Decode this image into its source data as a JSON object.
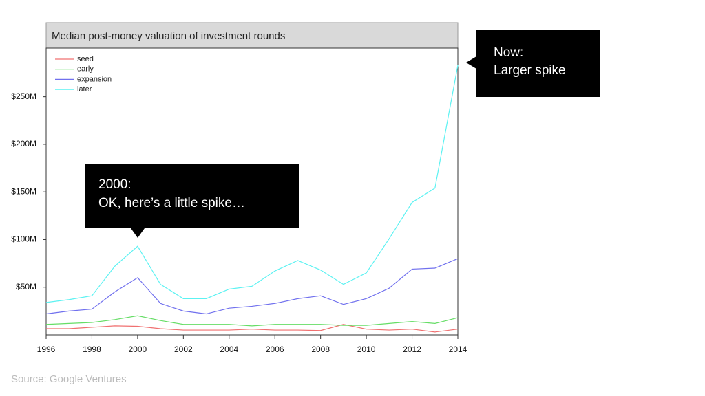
{
  "chart_data": {
    "type": "line",
    "title": "Median post-money valuation of investment rounds",
    "x": [
      1996,
      1997,
      1998,
      1999,
      2000,
      2001,
      2002,
      2003,
      2004,
      2005,
      2006,
      2007,
      2008,
      2009,
      2010,
      2011,
      2012,
      2013,
      2014
    ],
    "series": [
      {
        "name": "seed",
        "color": "#f07070",
        "values": [
          6.5,
          6.5,
          8,
          9.5,
          9,
          6.5,
          5,
          5,
          5,
          6,
          5,
          5,
          4.5,
          11,
          6,
          5,
          6,
          3,
          6
        ]
      },
      {
        "name": "early",
        "color": "#66dd66",
        "values": [
          11,
          12,
          13,
          16,
          20,
          15,
          11,
          11,
          11,
          9.5,
          11,
          11,
          11,
          10,
          10,
          12,
          14,
          12,
          18
        ]
      },
      {
        "name": "expansion",
        "color": "#7070ee",
        "values": [
          22,
          25,
          27,
          45,
          60,
          33,
          25,
          22,
          28,
          30,
          33,
          38,
          41,
          32,
          38,
          49,
          69,
          70,
          80
        ]
      },
      {
        "name": "later",
        "color": "#5cf2f2",
        "values": [
          34,
          37,
          41,
          72,
          93,
          53,
          38,
          38,
          48,
          51,
          67,
          78,
          68,
          53,
          65,
          101,
          139,
          154,
          283
        ]
      }
    ],
    "xlim": [
      1996,
      2014
    ],
    "xticks": [
      1996,
      1998,
      2000,
      2002,
      2004,
      2006,
      2008,
      2010,
      2012,
      2014
    ],
    "ylim": [
      0,
      301
    ],
    "yticks": [
      {
        "value": 50,
        "label": "$50M"
      },
      {
        "value": 100,
        "label": "$100M"
      },
      {
        "value": 150,
        "label": "$150M"
      },
      {
        "value": 200,
        "label": "$200M"
      },
      {
        "value": 250,
        "label": "$250M"
      }
    ],
    "legend": "top-left",
    "annotations": [
      [
        "Now:",
        "Larger spike"
      ],
      [
        "2000:",
        "OK, here’s a little spike…"
      ]
    ],
    "source": "Source: Google Ventures"
  }
}
